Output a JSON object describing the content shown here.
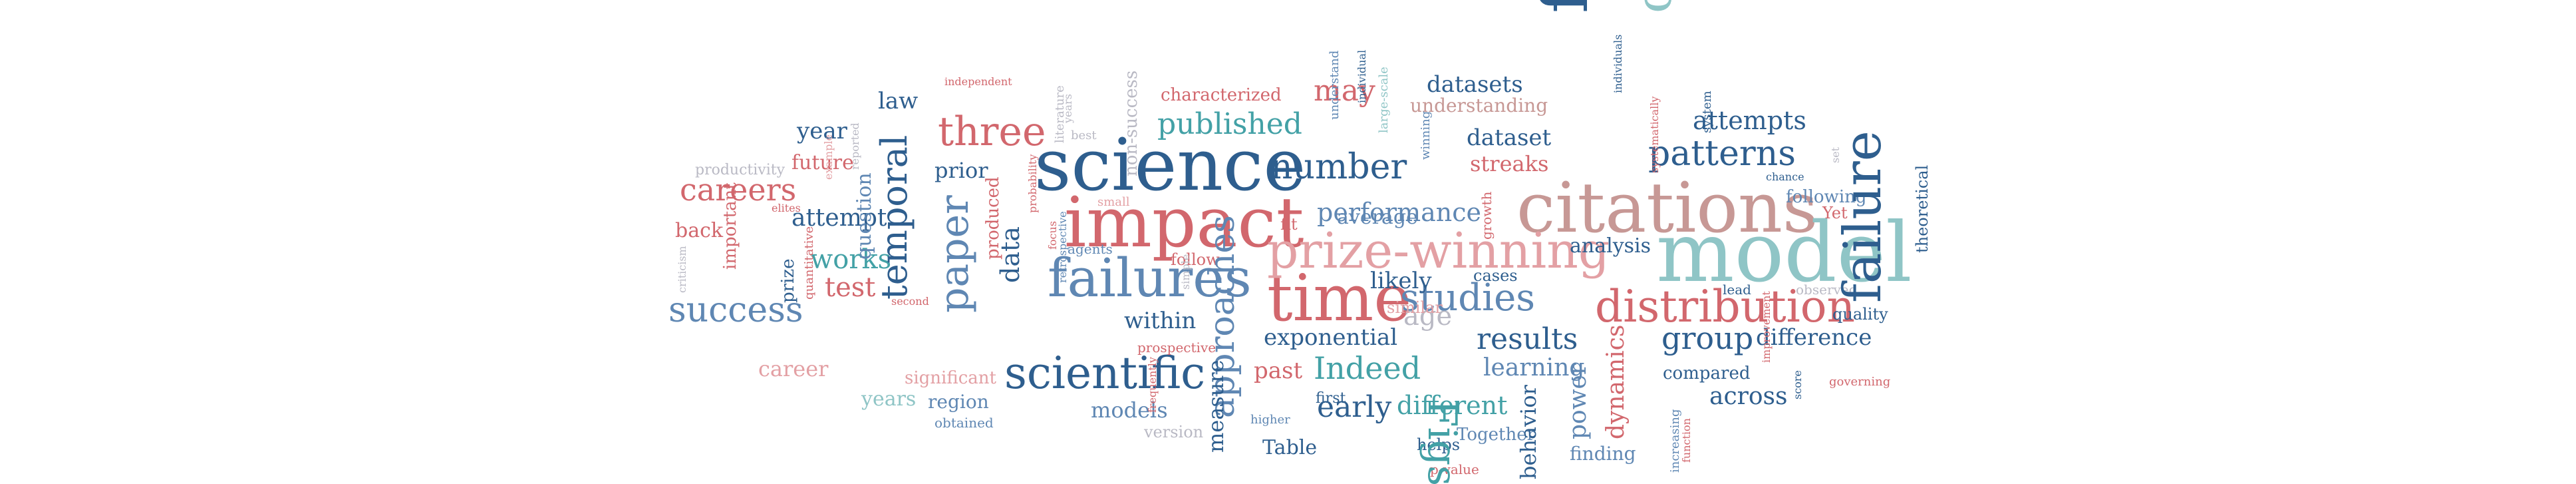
{
  "palette": {
    "dark_blue": "#2e5e8e",
    "mid_blue": "#5f87b3",
    "teal": "#43a1a6",
    "light_teal": "#8fc5c6",
    "red": "#d2676d",
    "light_red": "#e3a0a4",
    "rose": "#c79895",
    "grey": "#b9b9c4"
  },
  "words": [
    {
      "text": "science"
    },
    {
      "text": "impact"
    },
    {
      "text": "citations"
    },
    {
      "text": "model"
    },
    {
      "text": "time"
    },
    {
      "text": "prize-winning"
    },
    {
      "text": "failures"
    },
    {
      "text": "find"
    },
    {
      "text": "citation"
    },
    {
      "text": "distribution"
    },
    {
      "text": "scientific"
    },
    {
      "text": "failure"
    },
    {
      "text": "three"
    },
    {
      "text": "paper"
    },
    {
      "text": "number"
    },
    {
      "text": "patterns"
    },
    {
      "text": "temporal"
    },
    {
      "text": "approaches"
    },
    {
      "text": "studies"
    },
    {
      "text": "success"
    },
    {
      "text": "careers"
    },
    {
      "text": "published"
    },
    {
      "text": "Figs"
    },
    {
      "text": "Indeed"
    },
    {
      "text": "results"
    },
    {
      "text": "group"
    },
    {
      "text": "works"
    },
    {
      "text": "test"
    },
    {
      "text": "may"
    },
    {
      "text": "attempts"
    },
    {
      "text": "performance"
    },
    {
      "text": "exponential"
    },
    {
      "text": "early"
    },
    {
      "text": "different"
    },
    {
      "text": "age"
    },
    {
      "text": "likely"
    },
    {
      "text": "data"
    },
    {
      "text": "within"
    },
    {
      "text": "dynamics"
    },
    {
      "text": "power"
    },
    {
      "text": "learning"
    },
    {
      "text": "difference"
    },
    {
      "text": "across"
    },
    {
      "text": "attempt"
    },
    {
      "text": "future"
    },
    {
      "text": "year"
    },
    {
      "text": "law"
    },
    {
      "text": "datasets"
    },
    {
      "text": "dataset"
    },
    {
      "text": "streaks"
    },
    {
      "text": "analysis"
    },
    {
      "text": "average"
    },
    {
      "text": "measure"
    },
    {
      "text": "past"
    },
    {
      "text": "question"
    },
    {
      "text": "prior"
    },
    {
      "text": "years"
    },
    {
      "text": "career"
    },
    {
      "text": "models"
    },
    {
      "text": "behavior"
    },
    {
      "text": "region"
    },
    {
      "text": "similar"
    },
    {
      "text": "first"
    },
    {
      "text": "compared"
    },
    {
      "text": "Table"
    },
    {
      "text": "prize"
    },
    {
      "text": "back"
    },
    {
      "text": "important"
    },
    {
      "text": "characterized"
    },
    {
      "text": "understanding"
    },
    {
      "text": "productivity"
    },
    {
      "text": "significant"
    },
    {
      "text": "finding"
    },
    {
      "text": "Together"
    },
    {
      "text": "cases"
    },
    {
      "text": "quality"
    },
    {
      "text": "following"
    },
    {
      "text": "produced"
    },
    {
      "text": "non-success"
    },
    {
      "text": "follow"
    },
    {
      "text": "Yet"
    },
    {
      "text": "theoretical"
    },
    {
      "text": "version"
    },
    {
      "text": "helps"
    },
    {
      "text": "fit"
    },
    {
      "text": "obtained"
    },
    {
      "text": "prospective"
    },
    {
      "text": "lead"
    },
    {
      "text": "p-value"
    },
    {
      "text": "increasing"
    },
    {
      "text": "growth"
    },
    {
      "text": "agents"
    },
    {
      "text": "observed"
    },
    {
      "text": "system"
    },
    {
      "text": "understand"
    },
    {
      "text": "winning"
    },
    {
      "text": "large-scale"
    },
    {
      "text": "quantitative"
    },
    {
      "text": "literature"
    },
    {
      "text": "best"
    },
    {
      "text": "independent"
    },
    {
      "text": "individual"
    },
    {
      "text": "individuals"
    },
    {
      "text": "systematically"
    },
    {
      "text": "example"
    },
    {
      "text": "chance"
    },
    {
      "text": "second"
    },
    {
      "text": "probability"
    },
    {
      "text": "focus"
    },
    {
      "text": "retrospective"
    },
    {
      "text": "small"
    },
    {
      "text": "simple"
    },
    {
      "text": "higher"
    },
    {
      "text": "governing"
    },
    {
      "text": "score"
    },
    {
      "text": "improvement"
    },
    {
      "text": "elites"
    },
    {
      "text": "function"
    },
    {
      "text": "frequently"
    },
    {
      "text": "reported"
    },
    {
      "text": "criticism"
    },
    {
      "text": "years"
    },
    {
      "text": "set"
    }
  ]
}
